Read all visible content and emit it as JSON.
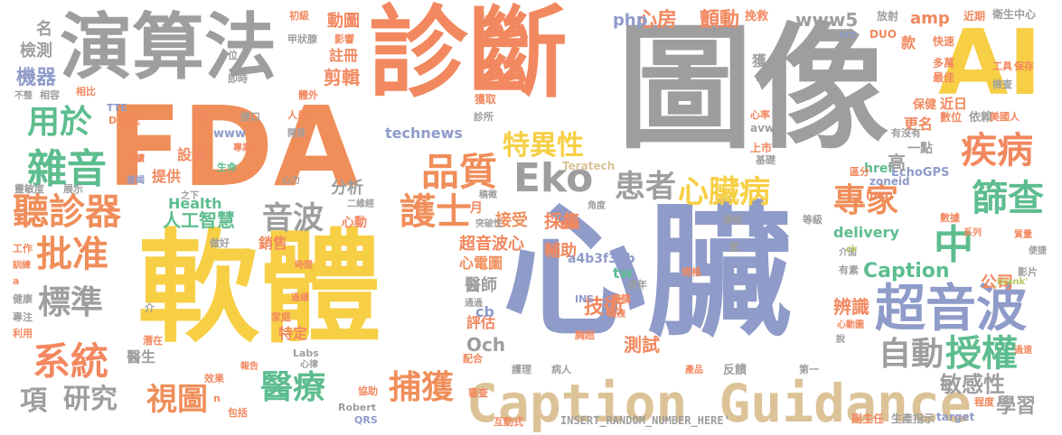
{
  "colors": {
    "grey": "#9e9e9e",
    "salmon": "#f2885f",
    "gold": "#f7cf45",
    "slate": "#8f9bc9",
    "green": "#5dbd8f",
    "orange": "#f08e5a",
    "tan": "#dcc397",
    "pink": "#e88cc1",
    "olive": "#b3c85a"
  },
  "words": {
    "tuxiang": "圖像",
    "zhenduan": "診斷",
    "xinzang": "心臟",
    "ruanti": "軟體",
    "fda": "FDA",
    "yansuanfa": "演算法",
    "ai": "AI",
    "caption_guidance": "Caption Guidance",
    "eko": "Eko",
    "chaoyinbo": "超音波",
    "tingzhenqi": "聽診器",
    "pizhun": "批准",
    "xitong": "系統",
    "shouquan": "授權",
    "shaicha": "篩查",
    "xinzangbing": "心臟病",
    "huanzhe": "患者",
    "zhuanjia": "專家",
    "jibing": "疾病",
    "pinzhi": "品質",
    "zayin": "雜音",
    "biaozhun": "標準",
    "yiliao": "醫療",
    "buhuo": "捕獲",
    "shitu": "視圖",
    "hushi": "護士",
    "yinbo": "音波",
    "teyixing": "特異性",
    "zidong": "自動",
    "yongyu": "用於",
    "zhong": "中",
    "yanjiu": "研究",
    "xiang": "項",
    "caption": "Caption",
    "mingan": "敏感性",
    "xuexi": "學習",
    "jishu": "技術",
    "xinfang": "心房",
    "chandong": "顫動",
    "www5": "www5",
    "php": "php",
    "amp": "amp",
    "dongtu": "動圖",
    "chaoyinboxin": "超音波心",
    "xindiantu": "心電圖",
    "fuzhu": "輔助",
    "caiji": "採集",
    "jieshou": "接受",
    "yishi": "醫師",
    "pinggu": "評估",
    "ceshi": "測試",
    "bianshi": "辨識",
    "gongsi": "公司",
    "delivery": "delivery",
    "technews": "technews",
    "health": "Health",
    "rengong": "人工智慧",
    "fenxi": "分析",
    "shebei": "設備",
    "tigong": "提供",
    "nian": "年",
    "jiance": "檢測",
    "jiqi": "機器",
    "ming": "名",
    "jianji": "剪輯",
    "zhuce": "註冊",
    "xiaoshou": "銷售",
    "xindong": "心動",
    "och": "Och",
    "cb": "cb",
    "tw": "tw",
    "a4b3": "a4b3f35b",
    "yuan": "醫生",
    "teding": "特定",
    "insert": "INSERT_RANDOM_NUMBER_HERE'",
    "teratech": "Teratech",
    "echogps": "EchoGPS",
    "href": "href",
    "zoneid": "zoneid",
    "img": "img",
    "gao": "高",
    "yidian": "一點",
    "gengming": "更名",
    "baojian": "保健",
    "shuwei": "數位",
    "yilai": "依賴",
    "meiguoren": "美國人",
    "jinri": "近日",
    "kuan": "款",
    "huo": "獲",
    "bay": "Bay",
    "gongju": "工具",
    "baocun": "保存",
    "huanjiu": "挽救",
    "fangshe": "放射",
    "jinqi": "近期",
    "weisheng": "衛生中心",
    "kuaisu": "快速",
    "duowan": "多萬",
    "zuijia": "最佳",
    "shiqian": "時",
    "jiancha": "檢查",
    "qianli": "潛力",
    "zhikong": "質控",
    "huoqu": "獲取",
    "zhensuo": "診所",
    "jieguo": "D 狀況",
    "chiyou": "持續",
    "xinshuai": "衰竭",
    "shengming": "生命",
    "zhuanye": "專業",
    "kaifa": "開發",
    "renyuan": "人員",
    "jiekou": "接口",
    "jishi": "即時",
    "tiwai": "體外",
    "jiazhuang": "甲狀腺",
    "yingxiang": "影響",
    "chuji": "初級",
    "xiangbi": "相比",
    "xiangrong": "相容",
    "buzheng": "不整",
    "wei": "位",
    "tte": "TTE",
    "www": "www",
    "avw": "avw",
    "xinlv": "心率",
    "shangshi": "上市",
    "jichu": "基礎",
    "qufen": "區分",
    "youmeiyou": "有沒有",
    "lingmin": "靈敏度",
    "zhanshi": "展示",
    "zhixia": "之下",
    "erwei": "二維經",
    "chengduo": "稱為",
    "yue": "月",
    "tupo": "突破性",
    "jiaodu": "角度",
    "tiyan": "體驗",
    "chuantong": "傳統",
    "dengji": "等級",
    "shuju": "數據",
    "jiemian": "介面",
    "yousu": "有素",
    "yingpian": "影片",
    "blank": "_blank'",
    "tao": "套",
    "ck": "ck",
    "xilie": "系列",
    "zhiliang": "質量",
    "bianjie": "便捷",
    "guize": "規格",
    "chengnian": "成年",
    "ins": "INS",
    "banmo": "瓣膜",
    "buxie": "補洩",
    "xindongtu": "心動圖",
    "shuo": "說",
    "guosu": "過速",
    "xiongchao": "胸超",
    "peihe": "配合",
    "huli": "護理",
    "bingren": "病人",
    "chanpin": "產品",
    "fankui": "反饋",
    "diyi": "第一",
    "xietong": "協助",
    "shenhe": "審查",
    "robert": "Robert",
    "qrs": "QRS",
    "hudong": "互動式",
    "fuzhuren": "副主任",
    "shengchan": "生產指示",
    "target": "target",
    "chengdu": "程度",
    "gongzuo": "工作",
    "xunlian": "訓練",
    "jiankang": "健康",
    "zhuanzhu": "專注",
    "liyong": "利用",
    "a": "a",
    "jie": "介",
    "shijian": "時間",
    "guohuan": "過緩",
    "jiating": "家庭",
    "qianzai": "潛在",
    "baogao": "報告",
    "xiaoguo": "效果",
    "baokuo": "包括",
    "xinlv2": "心律",
    "labs": "Labs",
    "n": "n",
    "tongguo": "通過",
    "xinli": "心力",
    "zuokan": "做好",
    "chengxu": "稿徵",
    "dui": "對",
    "src": "src",
    "duo": "DUO"
  }
}
